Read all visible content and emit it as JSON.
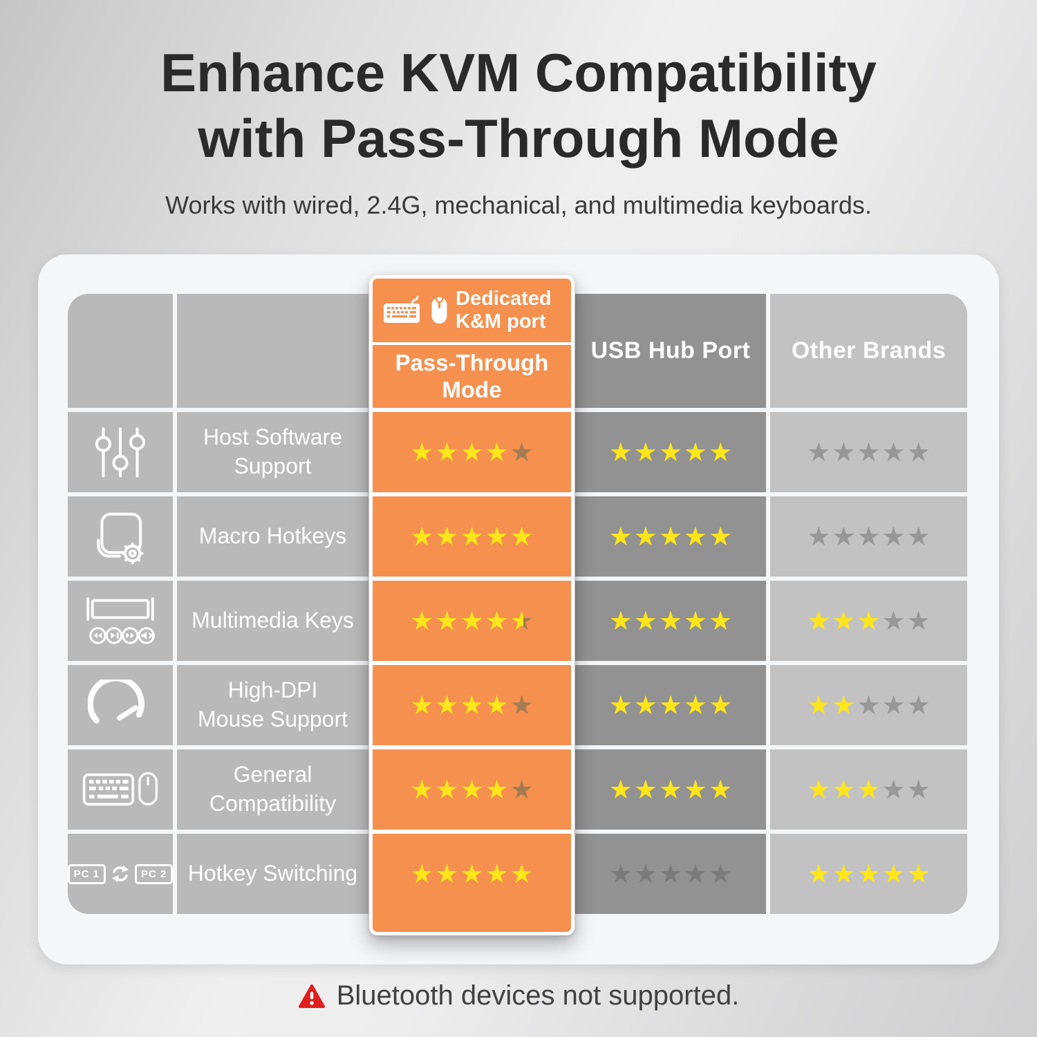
{
  "page": {
    "title_line1": "Enhance KVM Compatibility",
    "title_line2": "with Pass-Through Mode",
    "subtitle": "Works with wired, 2.4G, mechanical, and multimedia keyboards.",
    "footnote": "Bluetooth devices not supported."
  },
  "table": {
    "pass_through_header": {
      "badge": "Dedicated K&M port",
      "title": "Pass-Through Mode",
      "icons": [
        "keyboard-icon",
        "mouse-icon"
      ]
    },
    "columns": [
      {
        "key": "pass_through",
        "label": "Pass-Through Mode"
      },
      {
        "key": "usb_hub",
        "label": "USB Hub Port"
      },
      {
        "key": "other",
        "label": "Other Brands"
      }
    ],
    "rows": [
      {
        "icon": "sliders-icon",
        "label": "Host Software\nSupport",
        "ratings": {
          "pass_through": 4,
          "usb_hub": 5,
          "other": 0
        }
      },
      {
        "icon": "macro-hotkeys-icon",
        "label": "Macro Hotkeys",
        "ratings": {
          "pass_through": 5,
          "usb_hub": 5,
          "other": 0
        }
      },
      {
        "icon": "multimedia-keys-icon",
        "label": "Multimedia Keys",
        "ratings": {
          "pass_through": 4.5,
          "usb_hub": 5,
          "other": 3
        }
      },
      {
        "icon": "high-dpi-icon",
        "label": "High-DPI\nMouse Support",
        "ratings": {
          "pass_through": 4,
          "usb_hub": 5,
          "other": 2
        }
      },
      {
        "icon": "keyboard-mouse-icon",
        "label": "General\nCompatibility",
        "ratings": {
          "pass_through": 4,
          "usb_hub": 5,
          "other": 3
        }
      },
      {
        "icon": "pc-switch-icon",
        "label": "Hotkey Switching",
        "icon_labels": [
          "PC 1",
          "PC 2"
        ],
        "ratings": {
          "pass_through": 5,
          "usb_hub": 0,
          "other": 5
        }
      }
    ],
    "max_stars": 5
  },
  "chart_data": {
    "type": "table",
    "title": "Enhance KVM Compatibility with Pass-Through Mode",
    "categories": [
      "Host Software Support",
      "Macro Hotkeys",
      "Multimedia Keys",
      "High-DPI Mouse Support",
      "General Compatibility",
      "Hotkey Switching"
    ],
    "series": [
      {
        "name": "Pass-Through Mode (Dedicated K&M port)",
        "values": [
          4,
          5,
          4.5,
          4,
          4,
          5
        ]
      },
      {
        "name": "USB Hub Port",
        "values": [
          5,
          5,
          5,
          5,
          5,
          0
        ]
      },
      {
        "name": "Other Brands",
        "values": [
          0,
          0,
          3,
          2,
          3,
          5
        ]
      }
    ],
    "value_scale": "stars out of 5"
  },
  "colors": {
    "accent_orange": "#f5904f",
    "star_full": "#ffe61a",
    "star_empty_on_orange": "#a57c50",
    "star_empty_on_dark": "#7b7b7b",
    "star_empty_on_light": "#979797",
    "warning_red": "#e11d1d"
  }
}
